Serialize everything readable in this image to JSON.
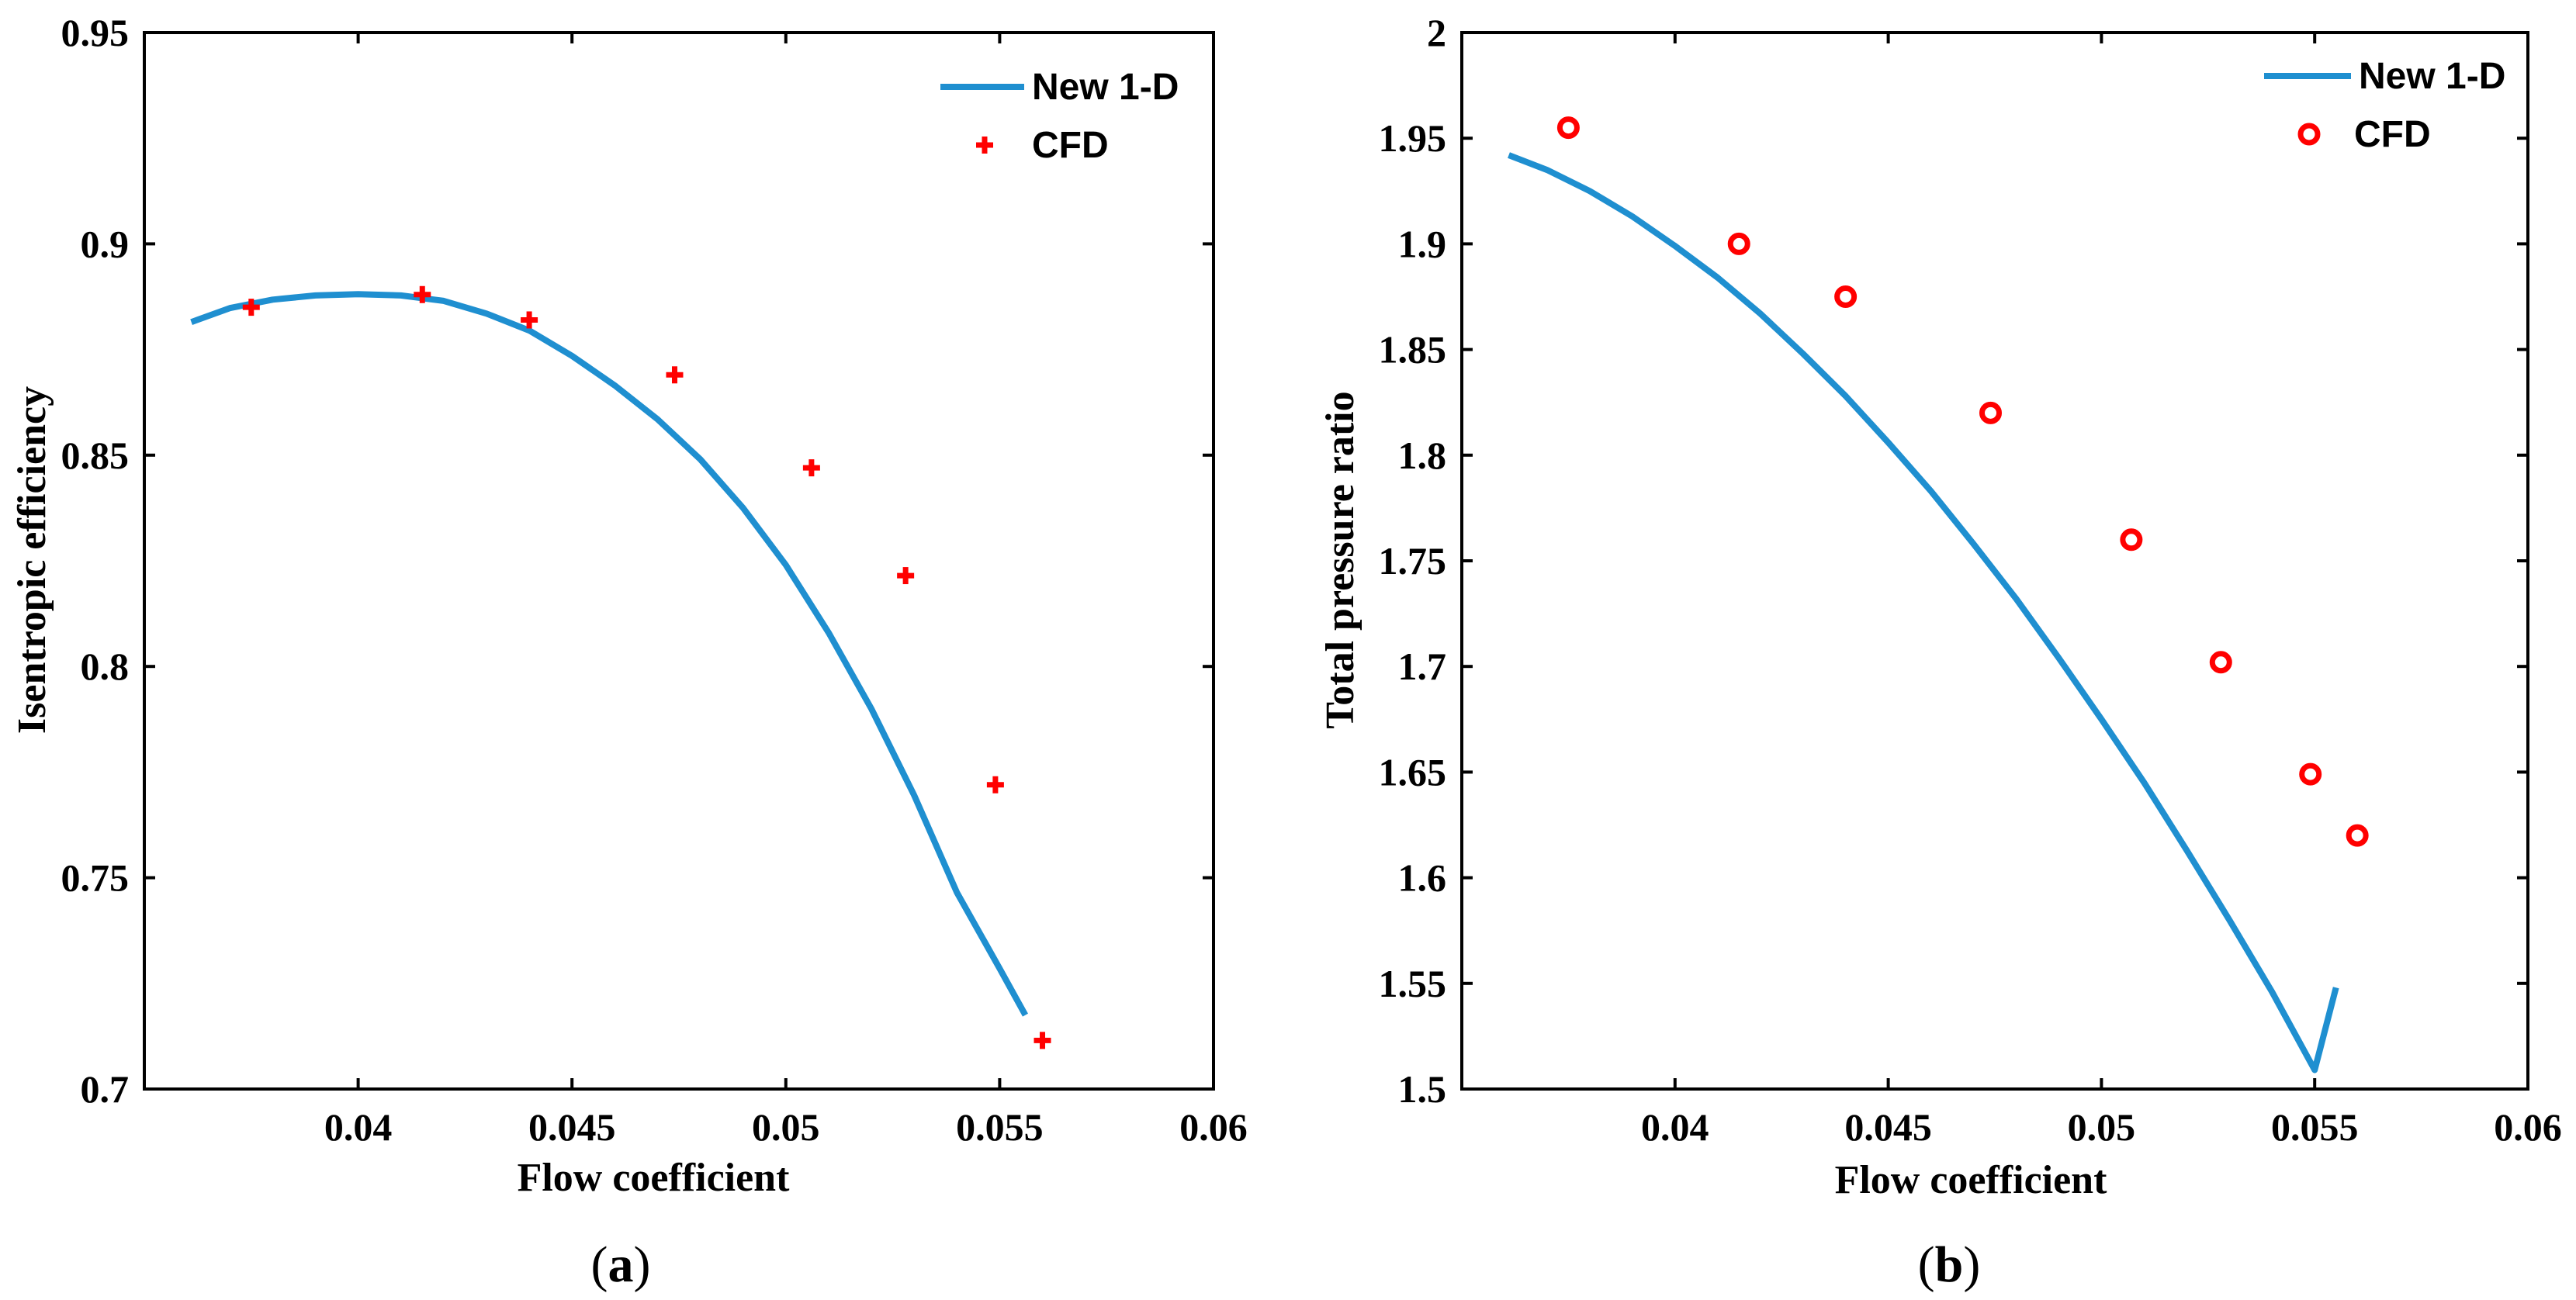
{
  "chart_data": [
    {
      "type": "line",
      "panel_label": "a",
      "title": "",
      "xlabel": "Flow coefficient",
      "ylabel": "Isentropic efficiency",
      "xlim": [
        0.035,
        0.06
      ],
      "ylim": [
        0.7,
        0.95
      ],
      "xticks": [
        "0.04",
        "0.045",
        "0.05",
        "0.055",
        "0.06"
      ],
      "yticks": [
        "0.7",
        "0.75",
        "0.8",
        "0.85",
        "0.9",
        "0.95"
      ],
      "grid": false,
      "legend": {
        "position": "top-right",
        "entries": [
          "New 1-D",
          "CFD"
        ]
      },
      "series": [
        {
          "name": "New 1-D",
          "style": "line",
          "color": "#1f8fd0",
          "x": [
            0.0361,
            0.037,
            0.038,
            0.039,
            0.04,
            0.041,
            0.042,
            0.043,
            0.044,
            0.045,
            0.046,
            0.047,
            0.048,
            0.049,
            0.05,
            0.051,
            0.052,
            0.053,
            0.054,
            0.055,
            0.0556
          ],
          "y": [
            0.8815,
            0.8848,
            0.8868,
            0.8878,
            0.8881,
            0.8878,
            0.8865,
            0.8835,
            0.8795,
            0.8735,
            0.8665,
            0.8585,
            0.849,
            0.8375,
            0.824,
            0.808,
            0.79,
            0.7695,
            0.7465,
            0.7285,
            0.7175
          ]
        },
        {
          "name": "CFD",
          "style": "marker-plus",
          "color": "#ff0000",
          "x": [
            0.0375,
            0.0415,
            0.044,
            0.0474,
            0.0506,
            0.0528,
            0.0549,
            0.056
          ],
          "y": [
            0.885,
            0.888,
            0.882,
            0.869,
            0.847,
            0.8215,
            0.772,
            0.7115
          ]
        }
      ]
    },
    {
      "type": "line",
      "panel_label": "b",
      "title": "",
      "xlabel": "Flow coefficient",
      "ylabel": "Total pressure ratio",
      "xlim": [
        0.035,
        0.06
      ],
      "ylim": [
        1.5,
        2.0
      ],
      "xticks": [
        "0.04",
        "0.045",
        "0.05",
        "0.055",
        "0.06"
      ],
      "yticks": [
        "1.5",
        "1.55",
        "1.6",
        "1.65",
        "1.7",
        "1.75",
        "1.8",
        "1.85",
        "1.9",
        "1.95",
        "2"
      ],
      "grid": false,
      "legend": {
        "position": "top-right",
        "entries": [
          "New 1-D",
          "CFD"
        ]
      },
      "series": [
        {
          "name": "New 1-D",
          "style": "line",
          "color": "#1f8fd0",
          "x": [
            0.0361,
            0.037,
            0.038,
            0.039,
            0.04,
            0.041,
            0.042,
            0.043,
            0.044,
            0.045,
            0.046,
            0.047,
            0.048,
            0.049,
            0.05,
            0.051,
            0.052,
            0.053,
            0.054,
            0.055,
            0.0555
          ],
          "y": [
            1.942,
            1.935,
            1.925,
            1.913,
            1.899,
            1.884,
            1.867,
            1.848,
            1.828,
            1.806,
            1.783,
            1.758,
            1.732,
            1.704,
            1.675,
            1.645,
            1.613,
            1.58,
            1.546,
            1.509,
            1.548
          ]
        },
        {
          "name": "CFD",
          "style": "marker-circle",
          "color": "#ff0000",
          "x": [
            0.0375,
            0.0415,
            0.044,
            0.0474,
            0.0507,
            0.0528,
            0.0549,
            0.056
          ],
          "y": [
            1.955,
            1.9,
            1.875,
            1.82,
            1.76,
            1.702,
            1.649,
            1.62
          ]
        }
      ]
    }
  ]
}
